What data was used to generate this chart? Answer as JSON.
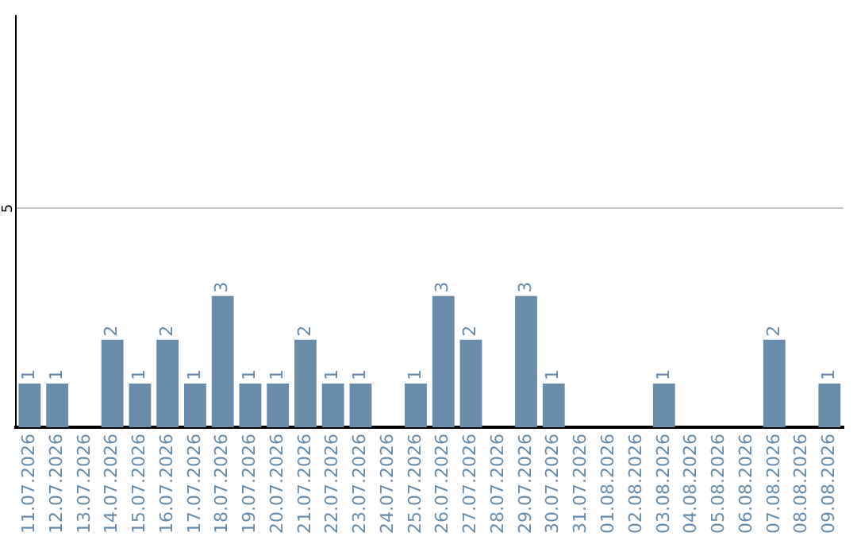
{
  "chart_data": {
    "type": "bar",
    "categories": [
      "11.07.2026",
      "12.07.2026",
      "13.07.2026",
      "14.07.2026",
      "15.07.2026",
      "16.07.2026",
      "17.07.2026",
      "18.07.2026",
      "19.07.2026",
      "20.07.2026",
      "21.07.2026",
      "22.07.2026",
      "23.07.2026",
      "24.07.2026",
      "25.07.2026",
      "26.07.2026",
      "27.07.2026",
      "28.07.2026",
      "29.07.2026",
      "30.07.2026",
      "31.07.2026",
      "01.08.2026",
      "02.08.2026",
      "03.08.2026",
      "04.08.2026",
      "05.08.2026",
      "06.08.2026",
      "07.08.2026",
      "08.08.2026",
      "09.08.2026"
    ],
    "values": [
      1,
      1,
      0,
      2,
      1,
      2,
      1,
      3,
      1,
      1,
      2,
      1,
      1,
      0,
      1,
      3,
      2,
      0,
      3,
      1,
      0,
      0,
      0,
      1,
      0,
      0,
      0,
      2,
      0,
      1
    ],
    "value_labels": [
      "1",
      "1",
      null,
      "2",
      "1",
      "2",
      "1",
      "3",
      "1",
      "1",
      "2",
      "1",
      "1",
      null,
      "1",
      "3",
      "2",
      null,
      "3",
      "1",
      null,
      null,
      null,
      "1",
      null,
      null,
      null,
      "2",
      null,
      "1"
    ],
    "color": "#6a8cab",
    "ylim": [
      0,
      9.4
    ],
    "yticks": [
      5
    ],
    "grid": "y",
    "legend": false
  }
}
